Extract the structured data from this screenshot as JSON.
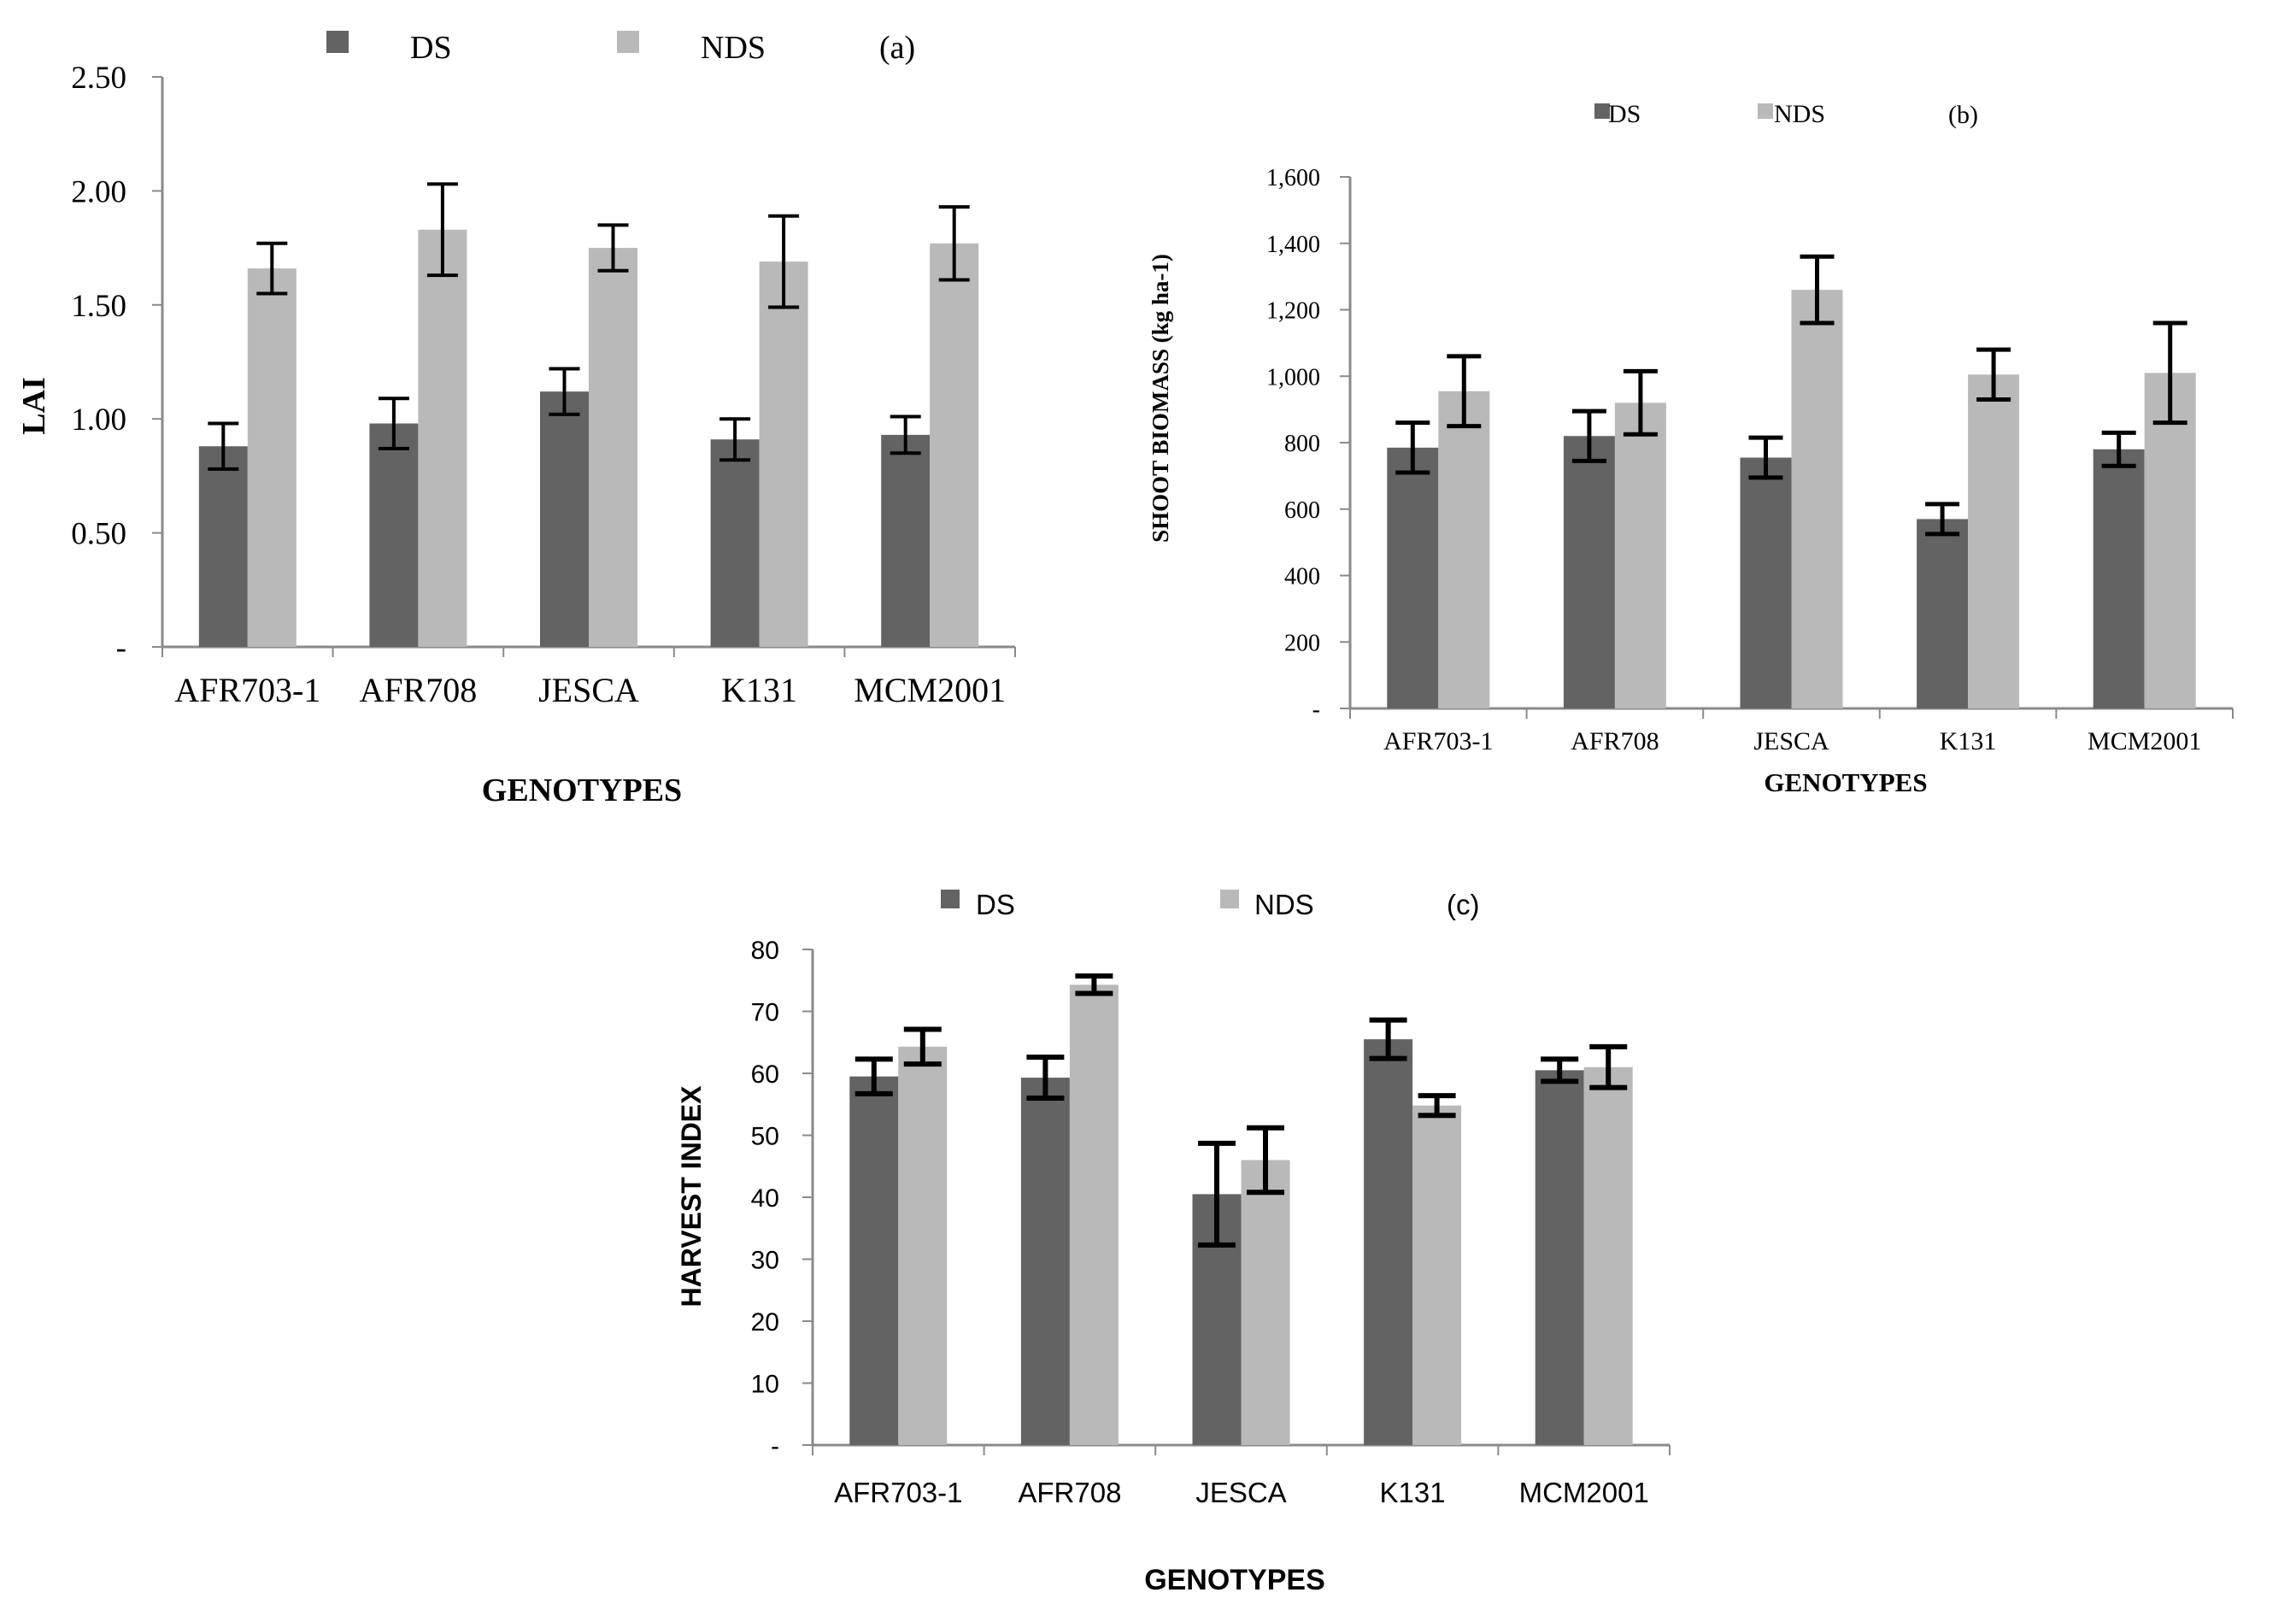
{
  "colors": {
    "ds": "#636363",
    "nds": "#b9b9b9",
    "axis": "#8a8a8a",
    "error": "#000000"
  },
  "legend": {
    "ds": "DS",
    "nds": "NDS"
  },
  "chart_data": [
    {
      "type": "bar",
      "panel": "(a)",
      "title": "",
      "xlabel": "GENOTYPES",
      "ylabel": "LAI",
      "categories": [
        "AFR703-1",
        "AFR708",
        "JESCA",
        "K131",
        "MCM2001"
      ],
      "ylim": [
        0,
        2.5
      ],
      "ytick_values": [
        0,
        0.5,
        1.0,
        1.5,
        2.0,
        2.5
      ],
      "ytick_labels": [
        "-",
        "0.50",
        "1.00",
        "1.50",
        "2.00",
        "2.50"
      ],
      "series": [
        {
          "name": "DS",
          "values": [
            0.88,
            0.98,
            1.12,
            0.91,
            0.93
          ],
          "errors": [
            0.1,
            0.11,
            0.1,
            0.09,
            0.08
          ]
        },
        {
          "name": "NDS",
          "values": [
            1.66,
            1.83,
            1.75,
            1.69,
            1.77
          ],
          "errors": [
            0.11,
            0.2,
            0.1,
            0.2,
            0.16
          ]
        }
      ],
      "grid": false,
      "legend_position": "top"
    },
    {
      "type": "bar",
      "panel": "(b)",
      "title": "",
      "xlabel": "GENOTYPES",
      "ylabel": "SHOOT BIOMASS (kg ha-1)",
      "categories": [
        "AFR703-1",
        "AFR708",
        "JESCA",
        "K131",
        "MCM2001"
      ],
      "ylim": [
        0,
        1600
      ],
      "ytick_values": [
        0,
        200,
        400,
        600,
        800,
        1000,
        1200,
        1400,
        1600
      ],
      "ytick_labels": [
        "-",
        "200",
        "400",
        "600",
        "800",
        "1,000",
        "1,200",
        "1,400",
        "1,600"
      ],
      "series": [
        {
          "name": "DS",
          "values": [
            785,
            820,
            755,
            570,
            780
          ],
          "errors": [
            75,
            75,
            60,
            45,
            50
          ]
        },
        {
          "name": "NDS",
          "values": [
            955,
            920,
            1260,
            1005,
            1010
          ],
          "errors": [
            105,
            95,
            100,
            75,
            150
          ]
        }
      ],
      "grid": false,
      "legend_position": "top"
    },
    {
      "type": "bar",
      "panel": "(c)",
      "title": "",
      "xlabel": "GENOTYPES",
      "ylabel": "HARVEST INDEX",
      "categories": [
        "AFR703-1",
        "AFR708",
        "JESCA",
        "K131",
        "MCM2001"
      ],
      "ylim": [
        0,
        80
      ],
      "ytick_values": [
        0,
        10,
        20,
        30,
        40,
        50,
        60,
        70,
        80
      ],
      "ytick_labels": [
        "-",
        "10",
        "20",
        "30",
        "40",
        "50",
        "60",
        "70",
        "80"
      ],
      "series": [
        {
          "name": "DS",
          "values": [
            59.5,
            59.3,
            40.5,
            65.5,
            60.5
          ],
          "errors": [
            2.8,
            3.3,
            8.2,
            3.1,
            1.8
          ]
        },
        {
          "name": "NDS",
          "values": [
            64.3,
            74.3,
            46,
            54.8,
            61
          ],
          "errors": [
            2.8,
            1.4,
            5.2,
            1.6,
            3.3
          ]
        }
      ],
      "grid": false,
      "legend_position": "top"
    }
  ]
}
